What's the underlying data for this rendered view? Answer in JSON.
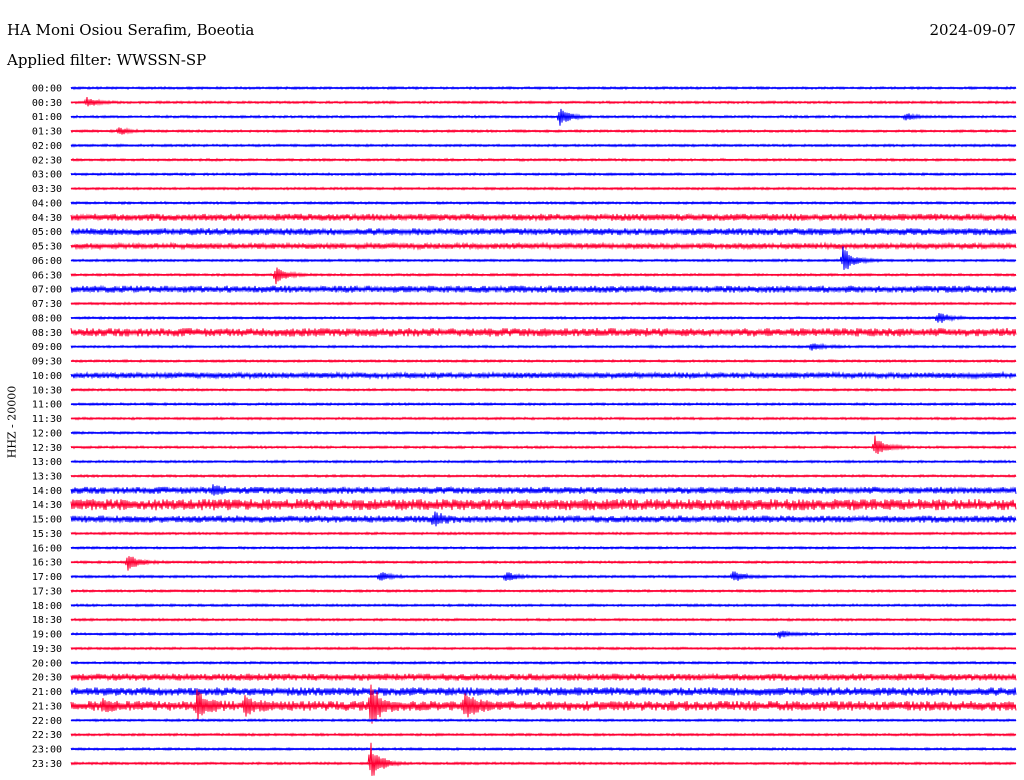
{
  "header": {
    "station": "HA Moni Osiou Serafim, Boeotia",
    "date": "2024-09-07",
    "filter": "Applied filter: WWSSN-SP"
  },
  "chart_data": {
    "type": "line",
    "title": "HA Moni Osiou Serafim, Boeotia",
    "ylabel": "HHZ - 20000",
    "row_labels": [
      "00:00",
      "00:30",
      "01:00",
      "01:30",
      "02:00",
      "02:30",
      "03:00",
      "03:30",
      "04:00",
      "04:30",
      "05:00",
      "05:30",
      "06:00",
      "06:30",
      "07:00",
      "07:30",
      "08:00",
      "08:30",
      "09:00",
      "09:30",
      "10:00",
      "10:30",
      "11:00",
      "11:30",
      "12:00",
      "12:30",
      "13:00",
      "13:30",
      "14:00",
      "14:30",
      "15:00",
      "15:30",
      "16:00",
      "16:30",
      "17:00",
      "17:30",
      "18:00",
      "18:30",
      "19:00",
      "19:30",
      "20:00",
      "20:30",
      "21:00",
      "21:30",
      "22:00",
      "22:30",
      "23:00",
      "23:30"
    ],
    "colors": [
      "#0000ff",
      "#ff0033"
    ],
    "events": [
      {
        "row": "00:30",
        "minute": 0.5,
        "amp": 5
      },
      {
        "row": "01:00",
        "minute": 15.5,
        "amp": 9
      },
      {
        "row": "01:00",
        "minute": 26.5,
        "amp": 4
      },
      {
        "row": "01:30",
        "minute": 1.5,
        "amp": 4
      },
      {
        "row": "06:00",
        "minute": 24.5,
        "amp": 14
      },
      {
        "row": "06:30",
        "minute": 6.5,
        "amp": 9
      },
      {
        "row": "08:00",
        "minute": 27.5,
        "amp": 7
      },
      {
        "row": "09:00",
        "minute": 23.5,
        "amp": 4
      },
      {
        "row": "12:30",
        "minute": 25.5,
        "amp": 12
      },
      {
        "row": "14:00",
        "minute": 4.5,
        "amp": 5
      },
      {
        "row": "15:00",
        "minute": 11.5,
        "amp": 6
      },
      {
        "row": "16:30",
        "minute": 1.8,
        "amp": 10
      },
      {
        "row": "17:00",
        "minute": 9.8,
        "amp": 5
      },
      {
        "row": "17:00",
        "minute": 13.8,
        "amp": 5
      },
      {
        "row": "17:00",
        "minute": 21.0,
        "amp": 6
      },
      {
        "row": "19:00",
        "minute": 22.5,
        "amp": 4
      },
      {
        "row": "21:30",
        "minute": 1.0,
        "amp": 6
      },
      {
        "row": "21:30",
        "minute": 4.0,
        "amp": 14
      },
      {
        "row": "21:30",
        "minute": 5.5,
        "amp": 9
      },
      {
        "row": "21:30",
        "minute": 9.5,
        "amp": 22
      },
      {
        "row": "21:30",
        "minute": 12.5,
        "amp": 12
      },
      {
        "row": "23:30",
        "minute": 9.5,
        "amp": 22
      }
    ],
    "noise": {
      "04:30": 2.5,
      "05:00": 2.5,
      "05:30": 2,
      "07:00": 2.5,
      "08:30": 3,
      "10:00": 2,
      "14:00": 2.5,
      "14:30": 4,
      "15:00": 2.5,
      "20:30": 2.5,
      "21:00": 3,
      "21:30": 3.5
    }
  }
}
